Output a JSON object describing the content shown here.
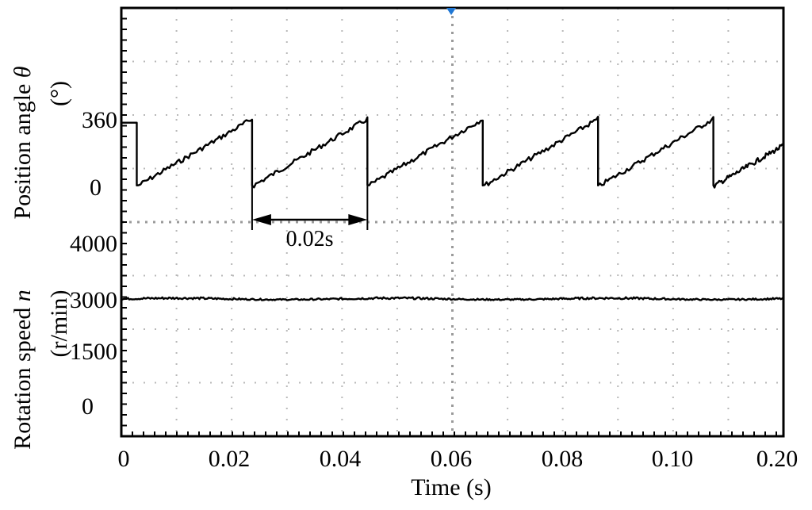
{
  "chart_data": {
    "type": "line",
    "xlabel": "Time (s)",
    "x_ticks": [
      "0",
      "0.02",
      "0.04",
      "0.06",
      "0.08",
      "0.10",
      "0.20"
    ],
    "xlim": [
      0,
      0.12
    ],
    "ylabel_upper": {
      "prefix": "Position angle ",
      "symbol": "θ",
      "unit": "(°)"
    },
    "ylabel_lower": {
      "prefix": "Rotation speed ",
      "symbol": "n",
      "unit": "(r/min)"
    },
    "y_ticks_upper": [
      "360",
      "0"
    ],
    "y_ticks_lower": [
      "4000",
      "3000",
      "1500",
      "0"
    ],
    "annotation": {
      "label": "0.02s",
      "from": 0.0237,
      "to": 0.0446
    },
    "series": [
      {
        "panel": "upper",
        "unit": "°",
        "ylim": [
          0,
          360
        ],
        "period": 0.0209,
        "first_wrap": 0.0028,
        "start_value": 340,
        "x_end": 0.12
      },
      {
        "panel": "lower",
        "unit": "r/min",
        "ylim": [
          0,
          4000
        ],
        "nominal": 3000,
        "ripple": 40,
        "x_end": 0.12
      }
    ],
    "grid": true,
    "marker_color": "#1f77d4"
  }
}
